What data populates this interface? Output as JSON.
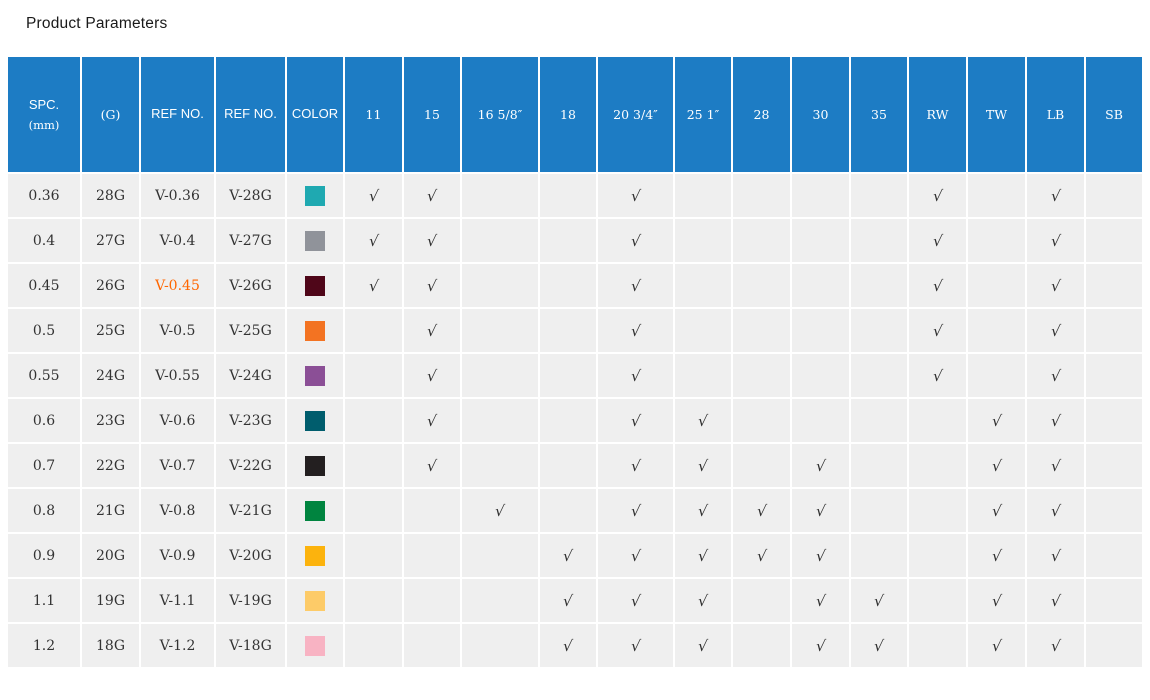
{
  "page": {
    "title": "Product Parameters"
  },
  "colors": {
    "header_bg": "#1d7cc4",
    "row_bg": "#efefef",
    "highlight_text": "#ff6600",
    "check_color": "#2f2f2f"
  },
  "table": {
    "check_glyph": "√",
    "columns": [
      {
        "key": "spc",
        "label": "SPC.",
        "sublabel": "(mm)",
        "style": "sans"
      },
      {
        "key": "g",
        "label": "(G)",
        "style": "serif"
      },
      {
        "key": "ref1",
        "label": "REF NO.",
        "style": "sans"
      },
      {
        "key": "ref2",
        "label": "REF NO.",
        "style": "sans"
      },
      {
        "key": "color",
        "label": "COLOR",
        "style": "sans"
      },
      {
        "key": "c11",
        "label": "11",
        "style": "serif"
      },
      {
        "key": "c15",
        "label": "15",
        "style": "serif"
      },
      {
        "key": "c16",
        "label": "16 5/8″",
        "style": "serif"
      },
      {
        "key": "c18",
        "label": "18",
        "style": "serif"
      },
      {
        "key": "c20",
        "label": "20 3/4″",
        "style": "serif"
      },
      {
        "key": "c25",
        "label": "25 1″",
        "style": "serif"
      },
      {
        "key": "c28",
        "label": "28",
        "style": "serif"
      },
      {
        "key": "c30",
        "label": "30",
        "style": "serif"
      },
      {
        "key": "c35",
        "label": "35",
        "style": "serif"
      },
      {
        "key": "rw",
        "label": "RW",
        "style": "serif"
      },
      {
        "key": "tw",
        "label": "TW",
        "style": "serif"
      },
      {
        "key": "lb",
        "label": "LB",
        "style": "serif"
      },
      {
        "key": "sb",
        "label": "SB",
        "style": "serif"
      }
    ],
    "size_column_keys": [
      "c11",
      "c15",
      "c16",
      "c18",
      "c20",
      "c25",
      "c28",
      "c30",
      "c35",
      "rw",
      "tw",
      "lb",
      "sb"
    ],
    "rows": [
      {
        "spc": "0.36",
        "g": "28G",
        "ref1": "V-0.36",
        "ref2": "V-28G",
        "ref1_highlight": false,
        "swatch": "#1fa9b1",
        "checks": [
          "c11",
          "c15",
          "c20",
          "rw",
          "lb"
        ]
      },
      {
        "spc": "0.4",
        "g": "27G",
        "ref1": "V-0.4",
        "ref2": "V-27G",
        "ref1_highlight": false,
        "swatch": "#90939a",
        "checks": [
          "c11",
          "c15",
          "c20",
          "rw",
          "lb"
        ]
      },
      {
        "spc": "0.45",
        "g": "26G",
        "ref1": "V-0.45",
        "ref2": "V-26G",
        "ref1_highlight": true,
        "swatch": "#4f0619",
        "checks": [
          "c11",
          "c15",
          "c20",
          "rw",
          "lb"
        ]
      },
      {
        "spc": "0.5",
        "g": "25G",
        "ref1": "V-0.5",
        "ref2": "V-25G",
        "ref1_highlight": false,
        "swatch": "#f37322",
        "checks": [
          "c15",
          "c20",
          "rw",
          "lb"
        ]
      },
      {
        "spc": "0.55",
        "g": "24G",
        "ref1": "V-0.55",
        "ref2": "V-24G",
        "ref1_highlight": false,
        "swatch": "#8b4f96",
        "checks": [
          "c15",
          "c20",
          "rw",
          "lb"
        ]
      },
      {
        "spc": "0.6",
        "g": "23G",
        "ref1": "V-0.6",
        "ref2": "V-23G",
        "ref1_highlight": false,
        "swatch": "#005d6d",
        "checks": [
          "c15",
          "c20",
          "c25",
          "tw",
          "lb"
        ]
      },
      {
        "spc": "0.7",
        "g": "22G",
        "ref1": "V-0.7",
        "ref2": "V-22G",
        "ref1_highlight": false,
        "swatch": "#231f20",
        "checks": [
          "c15",
          "c20",
          "c25",
          "c30",
          "tw",
          "lb"
        ]
      },
      {
        "spc": "0.8",
        "g": "21G",
        "ref1": "V-0.8",
        "ref2": "V-21G",
        "ref1_highlight": false,
        "swatch": "#00843f",
        "checks": [
          "c16",
          "c20",
          "c25",
          "c28",
          "c30",
          "tw",
          "lb"
        ]
      },
      {
        "spc": "0.9",
        "g": "20G",
        "ref1": "V-0.9",
        "ref2": "V-20G",
        "ref1_highlight": false,
        "swatch": "#fcb30d",
        "checks": [
          "c18",
          "c20",
          "c25",
          "c28",
          "c30",
          "tw",
          "lb"
        ]
      },
      {
        "spc": "1.1",
        "g": "19G",
        "ref1": "V-1.1",
        "ref2": "V-19G",
        "ref1_highlight": false,
        "swatch": "#fdcb68",
        "checks": [
          "c18",
          "c20",
          "c25",
          "c30",
          "c35",
          "tw",
          "lb"
        ]
      },
      {
        "spc": "1.2",
        "g": "18G",
        "ref1": "V-1.2",
        "ref2": "V-18G",
        "ref1_highlight": false,
        "swatch": "#f8b3c3",
        "checks": [
          "c18",
          "c20",
          "c25",
          "c30",
          "c35",
          "tw",
          "lb"
        ]
      }
    ]
  }
}
